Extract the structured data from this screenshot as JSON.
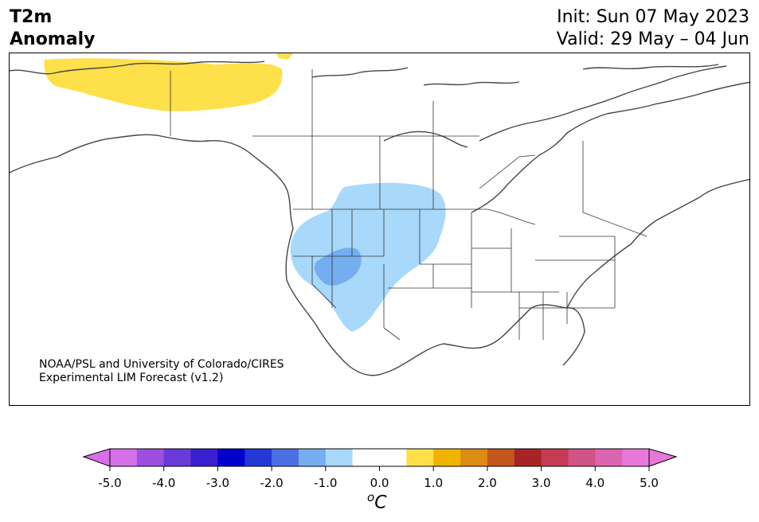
{
  "title": {
    "left_line1": "T2m",
    "left_line2": "Anomaly",
    "init": "Init: Sun 07 May 2023",
    "valid": "Valid: 29 May – 04 Jun"
  },
  "credit": {
    "line1": "NOAA/PSL and University of Colorado/CIRES",
    "line2": "Experimental LIM Forecast (v1.2)"
  },
  "colorbar": {
    "unit_symbol": "o",
    "unit_letter": "C",
    "ticks": [
      "-5.0",
      "-4.0",
      "-3.0",
      "-2.0",
      "-1.0",
      "0.0",
      "1.0",
      "2.0",
      "3.0",
      "4.0",
      "5.0"
    ],
    "colors": [
      "#d770e8",
      "#9c4fe0",
      "#6a3ad8",
      "#3a1fd0",
      "#0000cc",
      "#2438d8",
      "#4c70e4",
      "#74aef0",
      "#a8d8fa",
      "#ffffff",
      "#ffffff",
      "#fde04a",
      "#f0b400",
      "#dc8c14",
      "#c4561c",
      "#a82424",
      "#c43c54",
      "#d05484",
      "#dc64b0",
      "#e878d8"
    ],
    "under_color": "#d770e8",
    "over_color": "#e878d8"
  },
  "anomaly_colors": {
    "warm_1": "#fde04a",
    "cool_1": "#a8d8fa",
    "cool_2": "#74aef0"
  }
}
